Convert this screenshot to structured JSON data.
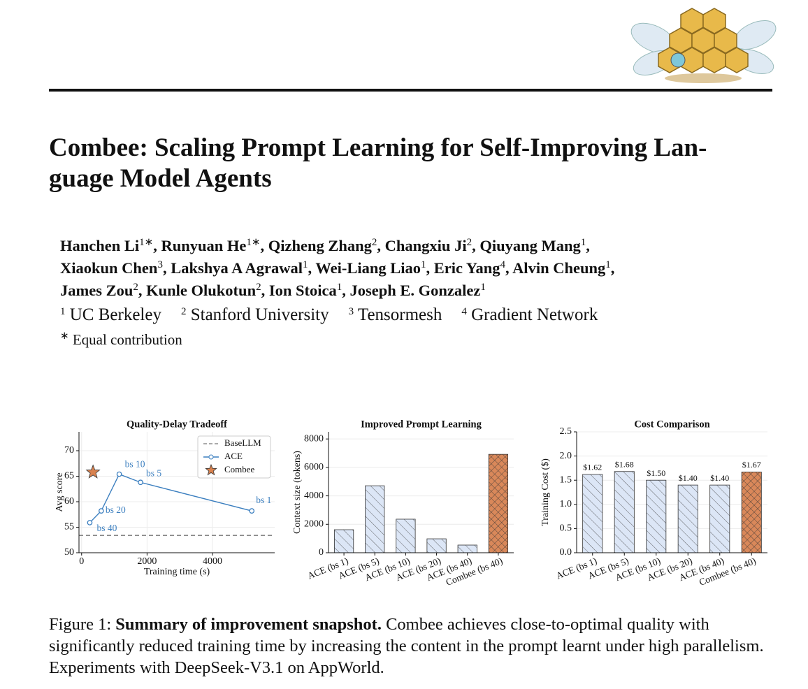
{
  "title": [
    "Combee: Scaling Prompt Learning for Self-Improving Lan-",
    "guage Model Agents"
  ],
  "authors": [
    [
      {
        "name": "Hanchen Li",
        "sup": "1∗",
        "sep": ","
      },
      {
        "name": "Runyuan He",
        "sup": "1∗",
        "sep": ","
      },
      {
        "name": "Qizheng Zhang",
        "sup": "2",
        "sep": ","
      },
      {
        "name": "Changxiu Ji",
        "sup": "2",
        "sep": ","
      },
      {
        "name": "Qiuyang Mang",
        "sup": "1",
        "sep": ","
      }
    ],
    [
      {
        "name": "Xiaokun Chen",
        "sup": "3",
        "sep": ","
      },
      {
        "name": "Lakshya A Agrawal",
        "sup": "1",
        "sep": ","
      },
      {
        "name": "Wei-Liang Liao",
        "sup": "1",
        "sep": ","
      },
      {
        "name": "Eric Yang",
        "sup": "4",
        "sep": ","
      },
      {
        "name": "Alvin Cheung",
        "sup": "1",
        "sep": ","
      }
    ],
    [
      {
        "name": "James Zou",
        "sup": "2",
        "sep": ","
      },
      {
        "name": "Kunle Olukotun",
        "sup": "2",
        "sep": ","
      },
      {
        "name": "Ion Stoica",
        "sup": "1",
        "sep": ","
      },
      {
        "name": "Joseph E. Gonzalez",
        "sup": "1"
      }
    ]
  ],
  "affiliations": [
    {
      "num": "1",
      "name": "UC Berkeley"
    },
    {
      "num": "2",
      "name": "Stanford University"
    },
    {
      "num": "3",
      "name": "Tensormesh"
    },
    {
      "num": "4",
      "name": "Gradient Network"
    }
  ],
  "note": {
    "mark": "∗",
    "text": "Equal contribution"
  },
  "caption": {
    "label": "Figure 1:",
    "bold": "Summary of improvement snapshot.",
    "text": "Combee achieves close-to-optimal quality with significantly reduced training time by increasing the content in the prompt learnt under high parallelism. Experiments with DeepSeek-V3.1 on AppWorld."
  },
  "chart_data": [
    {
      "type": "line",
      "title": "Quality-Delay Tradeoff",
      "xlabel": "Training time (s)",
      "ylabel": "Avg score",
      "xlim": [
        -80,
        5900
      ],
      "xticks": [
        0,
        2000,
        4000
      ],
      "ylim": [
        50,
        73.7
      ],
      "yticks": [
        50,
        55,
        60,
        65,
        70
      ],
      "grid": true,
      "legend": "upper right",
      "hlines": [
        {
          "name": "BaseLLM",
          "value": 53.4,
          "color": "#777777"
        }
      ],
      "series": [
        {
          "name": "ACE",
          "color": "#3a7ebf",
          "x": [
            250,
            600,
            1150,
            1800,
            5200
          ],
          "values": [
            55.9,
            58.2,
            65.4,
            63.8,
            58.2
          ],
          "point_labels": [
            "bs 40",
            "bs 20",
            "bs 10",
            "bs 5",
            "bs 1"
          ]
        },
        {
          "name": "Combee",
          "color": "#d9824f",
          "marker": "star",
          "x": [
            350
          ],
          "values": [
            65.8
          ]
        }
      ]
    },
    {
      "type": "bar",
      "title": "Improved Prompt Learning",
      "ylabel": "Context size (tokens)",
      "categories": [
        "ACE (bs 1)",
        "ACE (bs 5)",
        "ACE (bs 10)",
        "ACE (bs 20)",
        "ACE (bs 40)",
        "Combee (bs 40)"
      ],
      "values": [
        1620,
        4710,
        2360,
        980,
        540,
        6920
      ],
      "colors": [
        "#dce6f6",
        "#dce6f6",
        "#dce6f6",
        "#dce6f6",
        "#dce6f6",
        "#d9885a"
      ],
      "hatches": [
        "/",
        "/",
        "/",
        "/",
        "/",
        "x"
      ],
      "ylim": [
        0,
        8500
      ],
      "yticks": [
        0,
        2000,
        4000,
        6000,
        8000
      ],
      "grid": true
    },
    {
      "type": "bar",
      "title": "Cost Comparison",
      "ylabel": "Training Cost ($)",
      "categories": [
        "ACE (bs 1)",
        "ACE (bs 5)",
        "ACE (bs 10)",
        "ACE (bs 20)",
        "ACE (bs 40)",
        "Combee (bs 40)"
      ],
      "values": [
        1.62,
        1.68,
        1.5,
        1.4,
        1.4,
        1.67
      ],
      "value_labels": [
        "$1.62",
        "$1.68",
        "$1.50",
        "$1.40",
        "$1.40",
        "$1.67"
      ],
      "colors": [
        "#dce6f6",
        "#dce6f6",
        "#dce6f6",
        "#dce6f6",
        "#dce6f6",
        "#d9885a"
      ],
      "hatches": [
        "/",
        "/",
        "/",
        "/",
        "/",
        "x"
      ],
      "ylim": [
        0,
        2.5
      ],
      "yticks": [
        {
          "value": 0,
          "label": "0.0"
        },
        {
          "value": 0.5,
          "label": "0.5"
        },
        {
          "value": 1,
          "label": "1.0"
        },
        {
          "value": 1.5,
          "label": "1.5"
        },
        {
          "value": 2,
          "label": "2.0"
        },
        {
          "value": 2.5,
          "label": "2.5"
        }
      ],
      "grid": true
    }
  ]
}
